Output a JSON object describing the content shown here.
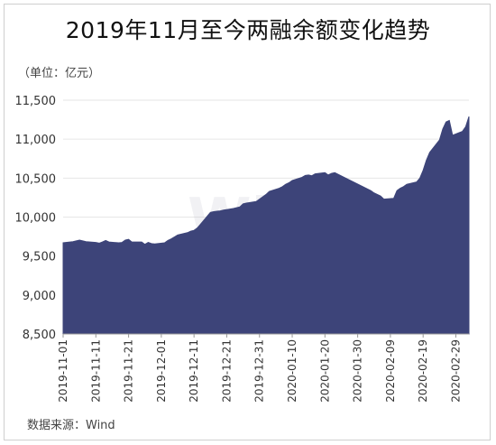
{
  "title": "2019年11月至今两融余额变化趋势",
  "unit_label": "（单位：亿元）",
  "source": "数据来源：Wind",
  "watermark": "Wind",
  "colors": {
    "area": "#3d4479",
    "grid": "#e6e6e6",
    "axis": "#999999"
  },
  "chart_data": {
    "type": "area",
    "title": "2019年11月至今两融余额变化趋势",
    "ylabel": "（单位：亿元）",
    "ylim": [
      8500,
      11500
    ],
    "yticks": [
      8500,
      9000,
      9500,
      10000,
      10500,
      11000,
      11500
    ],
    "ytick_labels": [
      "8,500",
      "9,000",
      "9,500",
      "10,000",
      "10,500",
      "11,000",
      "11,500"
    ],
    "xtick_labels": [
      "2019-11-01",
      "2019-11-11",
      "2019-11-21",
      "2019-12-01",
      "2019-12-11",
      "2019-12-21",
      "2019-12-31",
      "2020-01-10",
      "2020-01-20",
      "2020-01-30",
      "2020-02-09",
      "2020-02-19",
      "2020-02-29"
    ],
    "grid": "horizontal",
    "x": [
      "2019-11-01",
      "2019-11-04",
      "2019-11-05",
      "2019-11-06",
      "2019-11-07",
      "2019-11-08",
      "2019-11-11",
      "2019-11-12",
      "2019-11-13",
      "2019-11-14",
      "2019-11-15",
      "2019-11-18",
      "2019-11-19",
      "2019-11-20",
      "2019-11-21",
      "2019-11-22",
      "2019-11-25",
      "2019-11-26",
      "2019-11-27",
      "2019-11-28",
      "2019-11-29",
      "2019-12-02",
      "2019-12-03",
      "2019-12-04",
      "2019-12-05",
      "2019-12-06",
      "2019-12-09",
      "2019-12-10",
      "2019-12-11",
      "2019-12-12",
      "2019-12-13",
      "2019-12-16",
      "2019-12-17",
      "2019-12-18",
      "2019-12-19",
      "2019-12-20",
      "2019-12-23",
      "2019-12-24",
      "2019-12-25",
      "2019-12-26",
      "2019-12-27",
      "2019-12-30",
      "2019-12-31",
      "2020-01-02",
      "2020-01-03",
      "2020-01-06",
      "2020-01-07",
      "2020-01-08",
      "2020-01-09",
      "2020-01-10",
      "2020-01-13",
      "2020-01-14",
      "2020-01-15",
      "2020-01-16",
      "2020-01-17",
      "2020-01-20",
      "2020-01-21",
      "2020-01-22",
      "2020-01-23",
      "2020-02-03",
      "2020-02-04",
      "2020-02-05",
      "2020-02-06",
      "2020-02-07",
      "2020-02-10",
      "2020-02-11",
      "2020-02-12",
      "2020-02-13",
      "2020-02-14",
      "2020-02-17",
      "2020-02-18",
      "2020-02-19",
      "2020-02-20",
      "2020-02-21",
      "2020-02-24",
      "2020-02-25",
      "2020-02-26",
      "2020-02-27",
      "2020-02-28",
      "2020-03-02",
      "2020-03-03",
      "2020-03-04"
    ],
    "series": [
      {
        "values": [
          9670,
          9685,
          9695,
          9705,
          9695,
          9685,
          9675,
          9665,
          9680,
          9700,
          9680,
          9670,
          9675,
          9705,
          9715,
          9680,
          9680,
          9650,
          9675,
          9660,
          9655,
          9670,
          9700,
          9720,
          9745,
          9770,
          9800,
          9820,
          9830,
          9860,
          9910,
          10060,
          10070,
          10075,
          10080,
          10090,
          10110,
          10120,
          10130,
          10170,
          10180,
          10200,
          10230,
          10290,
          10330,
          10370,
          10390,
          10420,
          10440,
          10470,
          10510,
          10535,
          10540,
          10530,
          10555,
          10570,
          10540,
          10560,
          10570,
          10340,
          10310,
          10290,
          10270,
          10230,
          10240,
          10340,
          10370,
          10390,
          10420,
          10450,
          10500,
          10600,
          10730,
          10830,
          10990,
          11130,
          11220,
          11240,
          11050,
          11100,
          11160,
          11290
        ]
      }
    ]
  }
}
